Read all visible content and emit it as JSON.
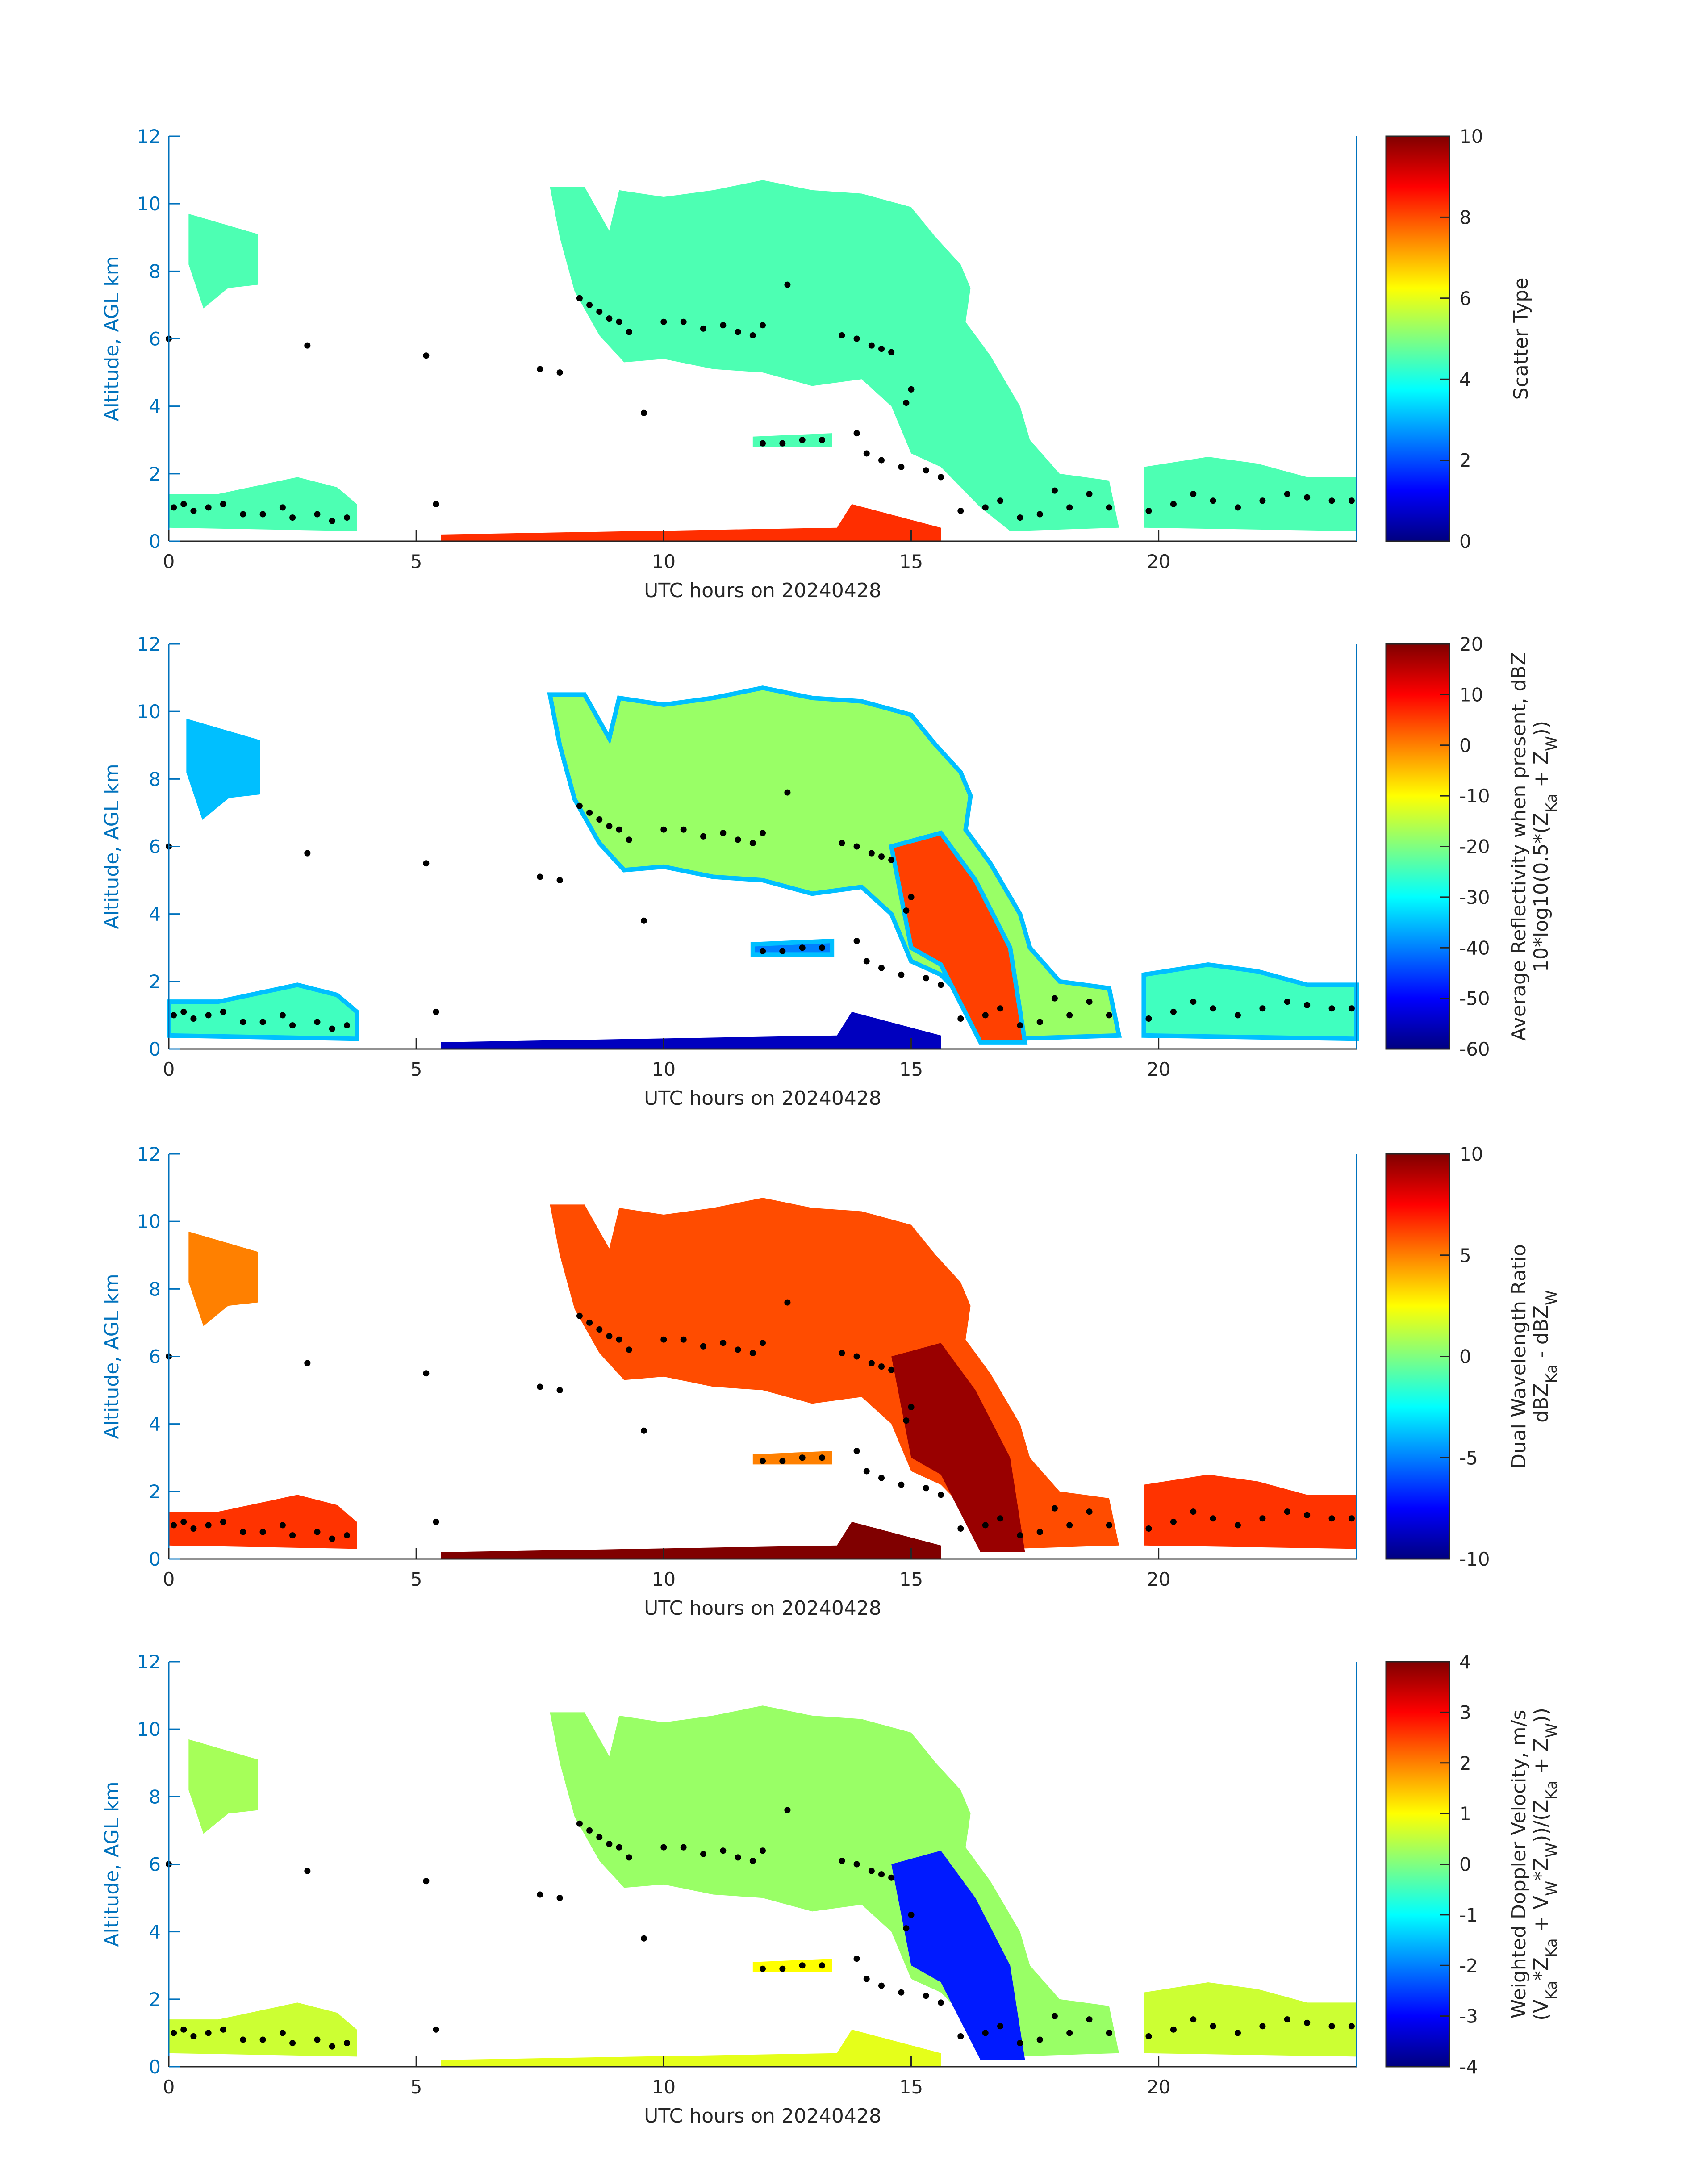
{
  "chart_data": [
    {
      "type": "heatmap",
      "xlabel": "UTC hours on 20240428",
      "ylabel": "Altitude, AGL km",
      "xlim": [
        0,
        24
      ],
      "ylim": [
        0,
        12
      ],
      "xticks": [
        0,
        5,
        10,
        15,
        20
      ],
      "yticks": [
        0,
        2,
        4,
        6,
        8,
        10,
        12
      ],
      "colorbar": {
        "label_lines": [
          "Scatter Type"
        ],
        "clim": [
          0,
          10
        ],
        "ticks": [
          0,
          2,
          4,
          6,
          8,
          10
        ]
      },
      "values": {
        "upper_cloud": 4.5,
        "cirrus": 4.5,
        "low_cloud": 4.5,
        "stratus": 4.5,
        "surface": 8.3,
        "core": 4.5
      }
    },
    {
      "type": "heatmap",
      "xlabel": "UTC hours on 20240428",
      "ylabel": "Altitude, AGL km",
      "xlim": [
        0,
        24
      ],
      "ylim": [
        0,
        12
      ],
      "xticks": [
        0,
        5,
        10,
        15,
        20
      ],
      "yticks": [
        0,
        2,
        4,
        6,
        8,
        10,
        12
      ],
      "colorbar": {
        "label_lines": [
          "Average Reflectivity when present, dBZ",
          "10*log10(0.5*(Z_{Ka} + Z_{W}))"
        ],
        "clim": [
          -60,
          20
        ],
        "ticks": [
          -60,
          -50,
          -40,
          -30,
          -20,
          -10,
          0,
          10,
          20
        ]
      },
      "values": {
        "upper_cloud": -18,
        "cirrus": -35,
        "low_cloud": -25,
        "stratus": -40,
        "surface": -55,
        "core": 5
      }
    },
    {
      "type": "heatmap",
      "xlabel": "UTC hours on 20240428",
      "ylabel": "Altitude, AGL km",
      "xlim": [
        0,
        24
      ],
      "ylim": [
        0,
        12
      ],
      "xticks": [
        0,
        5,
        10,
        15,
        20
      ],
      "yticks": [
        0,
        2,
        4,
        6,
        8,
        10,
        12
      ],
      "colorbar": {
        "label_lines": [
          "Dual Wavelength Ratio",
          "dBZ_{Ka} - dBZ_{W}"
        ],
        "clim": [
          -10,
          10
        ],
        "ticks": [
          -10,
          -5,
          0,
          5,
          10
        ]
      },
      "values": {
        "upper_cloud": 6,
        "cirrus": 5,
        "low_cloud": 6.5,
        "stratus": 5,
        "surface": 10,
        "core": 9.5
      }
    },
    {
      "type": "heatmap",
      "xlabel": "UTC hours on 20240428",
      "ylabel": "Altitude, AGL km",
      "xlim": [
        0,
        24
      ],
      "ylim": [
        0,
        12
      ],
      "xticks": [
        0,
        5,
        10,
        15,
        20
      ],
      "yticks": [
        0,
        2,
        4,
        6,
        8,
        10,
        12
      ],
      "colorbar": {
        "label_lines": [
          "Weighted Doppler Velocity, m/s",
          "(V_{Ka}*Z_{Ka} + V_{W}*Z_{W}))/(Z_{Ka} + Z_{W}))"
        ],
        "clim": [
          -4,
          4
        ],
        "ticks": [
          -4,
          -3,
          -2,
          -1,
          0,
          1,
          2,
          3,
          4
        ]
      },
      "values": {
        "upper_cloud": 0.2,
        "cirrus": 0.3,
        "low_cloud": 0.6,
        "stratus": 1.0,
        "surface": 0.8,
        "core": -2.8
      }
    }
  ],
  "regions": {
    "upper_cloud": [
      [
        7.7,
        10.5
      ],
      [
        8.4,
        10.5
      ],
      [
        8.9,
        9.2
      ],
      [
        9.1,
        10.4
      ],
      [
        10,
        10.2
      ],
      [
        11,
        10.4
      ],
      [
        12,
        10.7
      ],
      [
        13,
        10.4
      ],
      [
        14,
        10.3
      ],
      [
        15,
        9.9
      ],
      [
        15.5,
        9
      ],
      [
        16,
        8.2
      ],
      [
        16.2,
        7.5
      ],
      [
        16.1,
        6.5
      ],
      [
        16.6,
        5.5
      ],
      [
        17.2,
        4
      ],
      [
        17.4,
        3
      ],
      [
        18,
        2
      ],
      [
        19,
        1.8
      ],
      [
        19.2,
        0.4
      ],
      [
        17,
        0.3
      ],
      [
        16.4,
        1
      ],
      [
        15.6,
        2.2
      ],
      [
        15,
        2.6
      ],
      [
        14.6,
        4
      ],
      [
        14,
        4.8
      ],
      [
        13,
        4.6
      ],
      [
        12,
        5
      ],
      [
        11,
        5.1
      ],
      [
        10,
        5.4
      ],
      [
        9.2,
        5.3
      ],
      [
        8.7,
        6.1
      ],
      [
        8.2,
        7.4
      ],
      [
        7.9,
        9
      ]
    ],
    "cirrus": [
      [
        0.4,
        9.7
      ],
      [
        1.8,
        9.1
      ],
      [
        1.8,
        7.6
      ],
      [
        1.2,
        7.5
      ],
      [
        0.7,
        6.9
      ],
      [
        0.4,
        8.2
      ]
    ],
    "low_cloud": [
      [
        0,
        1.4
      ],
      [
        1,
        1.4
      ],
      [
        2.6,
        1.9
      ],
      [
        3.4,
        1.6
      ],
      [
        3.8,
        1.1
      ],
      [
        3.8,
        0.3
      ],
      [
        0,
        0.4
      ]
    ],
    "low_cloud2": [
      [
        19.7,
        2.2
      ],
      [
        21,
        2.5
      ],
      [
        22,
        2.3
      ],
      [
        23,
        1.9
      ],
      [
        24,
        1.9
      ],
      [
        24,
        0.3
      ],
      [
        19.7,
        0.4
      ]
    ],
    "stratus": [
      [
        11.8,
        3.1
      ],
      [
        13.4,
        3.2
      ],
      [
        13.4,
        2.8
      ],
      [
        11.8,
        2.8
      ]
    ],
    "surface": [
      [
        5.5,
        0.2
      ],
      [
        13.5,
        0.4
      ],
      [
        13.8,
        1.1
      ],
      [
        15.6,
        0.4
      ],
      [
        15.6,
        0
      ],
      [
        5.5,
        0
      ]
    ],
    "core": [
      [
        14.6,
        6
      ],
      [
        15.6,
        6.4
      ],
      [
        16.3,
        5
      ],
      [
        17,
        3
      ],
      [
        17.3,
        0.2
      ],
      [
        16.4,
        0.2
      ],
      [
        15.6,
        2.5
      ],
      [
        15,
        3
      ]
    ]
  },
  "cloud_base_points": [
    [
      0.1,
      1.0
    ],
    [
      0.3,
      1.1
    ],
    [
      0.5,
      0.9
    ],
    [
      0.8,
      1.0
    ],
    [
      1.1,
      1.1
    ],
    [
      1.5,
      0.8
    ],
    [
      1.9,
      0.8
    ],
    [
      2.3,
      1.0
    ],
    [
      2.5,
      0.7
    ],
    [
      3.0,
      0.8
    ],
    [
      3.3,
      0.6
    ],
    [
      3.6,
      0.7
    ],
    [
      0.0,
      6.0
    ],
    [
      2.8,
      5.8
    ],
    [
      5.2,
      5.5
    ],
    [
      5.4,
      1.1
    ],
    [
      7.5,
      5.1
    ],
    [
      7.9,
      5.0
    ],
    [
      9.6,
      3.8
    ],
    [
      8.3,
      7.2
    ],
    [
      8.5,
      7.0
    ],
    [
      8.7,
      6.8
    ],
    [
      8.9,
      6.6
    ],
    [
      9.1,
      6.5
    ],
    [
      9.3,
      6.2
    ],
    [
      10.0,
      6.5
    ],
    [
      10.4,
      6.5
    ],
    [
      10.8,
      6.3
    ],
    [
      11.2,
      6.4
    ],
    [
      11.5,
      6.2
    ],
    [
      11.8,
      6.1
    ],
    [
      12.0,
      6.4
    ],
    [
      12.5,
      7.6
    ],
    [
      12.0,
      2.9
    ],
    [
      12.4,
      2.9
    ],
    [
      12.8,
      3.0
    ],
    [
      13.2,
      3.0
    ],
    [
      13.6,
      6.1
    ],
    [
      13.9,
      6.0
    ],
    [
      14.2,
      5.8
    ],
    [
      14.4,
      5.7
    ],
    [
      14.6,
      5.6
    ],
    [
      14.9,
      4.1
    ],
    [
      15.0,
      4.5
    ],
    [
      13.9,
      3.2
    ],
    [
      14.1,
      2.6
    ],
    [
      14.4,
      2.4
    ],
    [
      14.8,
      2.2
    ],
    [
      15.3,
      2.1
    ],
    [
      15.6,
      1.9
    ],
    [
      16.0,
      0.9
    ],
    [
      16.5,
      1.0
    ],
    [
      16.8,
      1.2
    ],
    [
      17.2,
      0.7
    ],
    [
      17.6,
      0.8
    ],
    [
      17.9,
      1.5
    ],
    [
      18.2,
      1.0
    ],
    [
      18.6,
      1.4
    ],
    [
      19.0,
      1.0
    ],
    [
      19.8,
      0.9
    ],
    [
      20.3,
      1.1
    ],
    [
      20.7,
      1.4
    ],
    [
      21.1,
      1.2
    ],
    [
      21.6,
      1.0
    ],
    [
      22.1,
      1.2
    ],
    [
      22.6,
      1.4
    ],
    [
      23.0,
      1.3
    ],
    [
      23.5,
      1.2
    ],
    [
      23.9,
      1.2
    ]
  ]
}
